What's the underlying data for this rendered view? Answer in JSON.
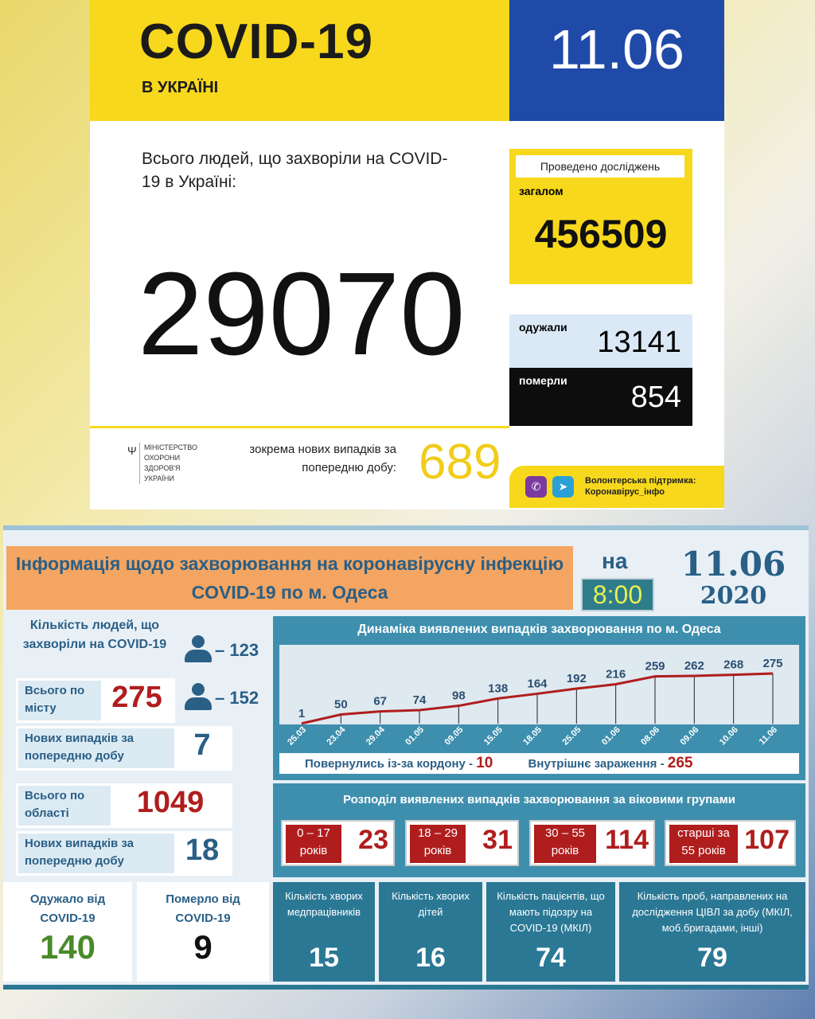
{
  "national": {
    "title": "COVID-19",
    "subtitle": "В УКРАЇНІ",
    "date": "11.06",
    "total_label": "Всього людей, що захворіли на COVID-19 в Україні:",
    "total": "29070",
    "tests_label": "Проведено досліджень",
    "tests_sub": "загалом",
    "tests": "456509",
    "recovered_label": "одужали",
    "recovered": "13141",
    "dead_label": "померли",
    "dead": "854",
    "ministry": "МІНІСТЕРСТВО ОХОРОНИ ЗДОРОВ'Я УКРАЇНИ",
    "new_label": "зокрема нових випадків за попередню добу:",
    "new": "689",
    "volunteer": "Волонтерська підтримка:",
    "volunteer_handle": "Коронавірус_інфо",
    "icons": [
      "viber-icon",
      "telegram-icon"
    ],
    "colors": {
      "yellow": "#f7d81c",
      "blue": "#1f4aa8"
    }
  },
  "odesa": {
    "title": "Інформація щодо захворювання на коронавірусну інфекцію COVID-19 по м. Одеса",
    "na": "на",
    "time": "8:00",
    "date": "11.06",
    "year": "2020",
    "sick_label": "Кількість людей, що захворіли на COVID-19",
    "men": "– 123",
    "women": "– 152",
    "city_label": "Всього по місту",
    "city_total": "275",
    "city_new_label": "Нових випадків за попередню добу",
    "city_new": "7",
    "region_label": "Всього по області",
    "region_total": "1049",
    "region_new_label": "Нових випадків за попередню добу",
    "region_new": "18",
    "recovered_label": "Одужало від COVID-19",
    "recovered": "140",
    "dead_label": "Померло від COVID-19",
    "dead": "9",
    "returned_label": "Повернулись із-за кордону -",
    "returned": "10",
    "internal_label": "Внутрішнє зараження -",
    "internal": "265",
    "age_title": "Розподіл виявлених випадків захворювання за віковими групами",
    "ages": [
      {
        "label": "0 – 17 років",
        "value": "23"
      },
      {
        "label": "18 – 29 років",
        "value": "31"
      },
      {
        "label": "30 – 55 років",
        "value": "114"
      },
      {
        "label": "старші за 55 років",
        "value": "107"
      }
    ],
    "stats": [
      {
        "label": "Кількість хворих медпрацівників",
        "value": "15"
      },
      {
        "label": "Кількість хворих дітей",
        "value": "16"
      },
      {
        "label": "Кількість пацієнтів, що мають підозру на COVID-19 (МКІЛ)",
        "value": "74"
      },
      {
        "label": "Кількість проб, направлених на дослідження ЦІВЛ за добу (МКІЛ, моб.бригадами, інші)",
        "value": "79"
      }
    ]
  },
  "chart_data": {
    "type": "line",
    "title": "Динаміка виявлених випадків захворювання по м. Одеса",
    "categories": [
      "25.03",
      "23.04",
      "29.04",
      "01.05",
      "09.05",
      "15.05",
      "18.05",
      "25.05",
      "01.06",
      "08.06",
      "09.06",
      "10.06",
      "11.06"
    ],
    "values": [
      1,
      50,
      67,
      74,
      98,
      138,
      164,
      192,
      216,
      259,
      262,
      268,
      275
    ],
    "line_color": "#b01d1d"
  }
}
